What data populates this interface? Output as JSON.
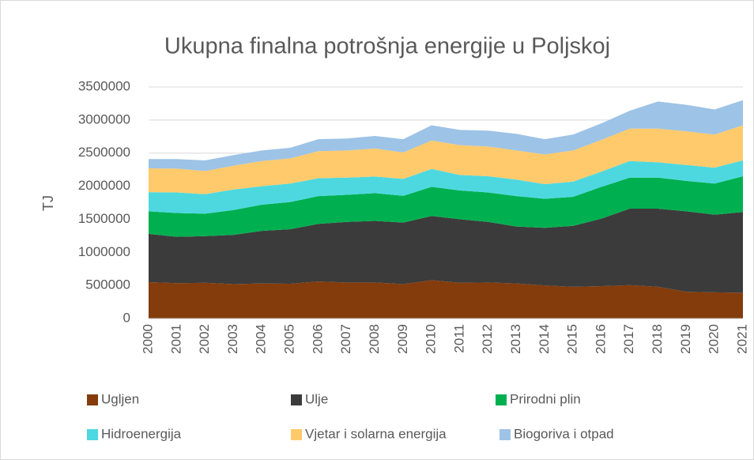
{
  "chart_data": {
    "type": "stacked-area",
    "title": "Ukupna finalna potrošnja energije u Poljskoj",
    "y_label": "TJ",
    "categories": [
      "2000",
      "2001",
      "2002",
      "2003",
      "2004",
      "2005",
      "2006",
      "2007",
      "2008",
      "2009",
      "2010",
      "2011",
      "2012",
      "2013",
      "2014",
      "2015",
      "2016",
      "2017",
      "2018",
      "2019",
      "2020",
      "2021"
    ],
    "series": [
      {
        "name": "Ugljen",
        "color": "#843c0c",
        "values": [
          550000,
          535000,
          540000,
          520000,
          530000,
          525000,
          560000,
          545000,
          545000,
          520000,
          580000,
          540000,
          545000,
          530000,
          500000,
          480000,
          490000,
          505000,
          480000,
          405000,
          395000,
          390000
        ]
      },
      {
        "name": "Ulje",
        "color": "#3b3b3b",
        "values": [
          730000,
          700000,
          705000,
          745000,
          795000,
          825000,
          870000,
          915000,
          930000,
          930000,
          970000,
          960000,
          915000,
          860000,
          870000,
          920000,
          1020000,
          1155000,
          1180000,
          1215000,
          1175000,
          1220000
        ]
      },
      {
        "name": "Prirodni plin",
        "color": "#00b050",
        "values": [
          340000,
          360000,
          340000,
          375000,
          395000,
          410000,
          420000,
          410000,
          420000,
          405000,
          440000,
          435000,
          445000,
          460000,
          440000,
          440000,
          480000,
          470000,
          470000,
          460000,
          470000,
          540000
        ]
      },
      {
        "name": "Hidroenergija",
        "color": "#4dd8e0",
        "values": [
          290000,
          310000,
          295000,
          310000,
          280000,
          280000,
          270000,
          260000,
          250000,
          255000,
          270000,
          235000,
          245000,
          250000,
          220000,
          230000,
          230000,
          250000,
          230000,
          240000,
          240000,
          240000
        ]
      },
      {
        "name": "Vjetar i solarna energija",
        "color": "#ffca6b",
        "values": [
          360000,
          360000,
          350000,
          360000,
          380000,
          380000,
          410000,
          410000,
          425000,
          400000,
          430000,
          450000,
          450000,
          440000,
          450000,
          470000,
          480000,
          490000,
          510000,
          510000,
          500000,
          530000
        ]
      },
      {
        "name": "Biogoriva i otpad",
        "color": "#9dc3e6",
        "values": [
          140000,
          145000,
          160000,
          160000,
          160000,
          160000,
          180000,
          180000,
          190000,
          200000,
          230000,
          230000,
          240000,
          250000,
          230000,
          240000,
          250000,
          270000,
          410000,
          400000,
          380000,
          380000
        ]
      }
    ],
    "ylim": [
      0,
      3500000
    ],
    "yticks": [
      0,
      500000,
      1000000,
      1500000,
      2000000,
      2500000,
      3000000,
      3500000
    ],
    "grid": true,
    "legend": "bottom"
  }
}
